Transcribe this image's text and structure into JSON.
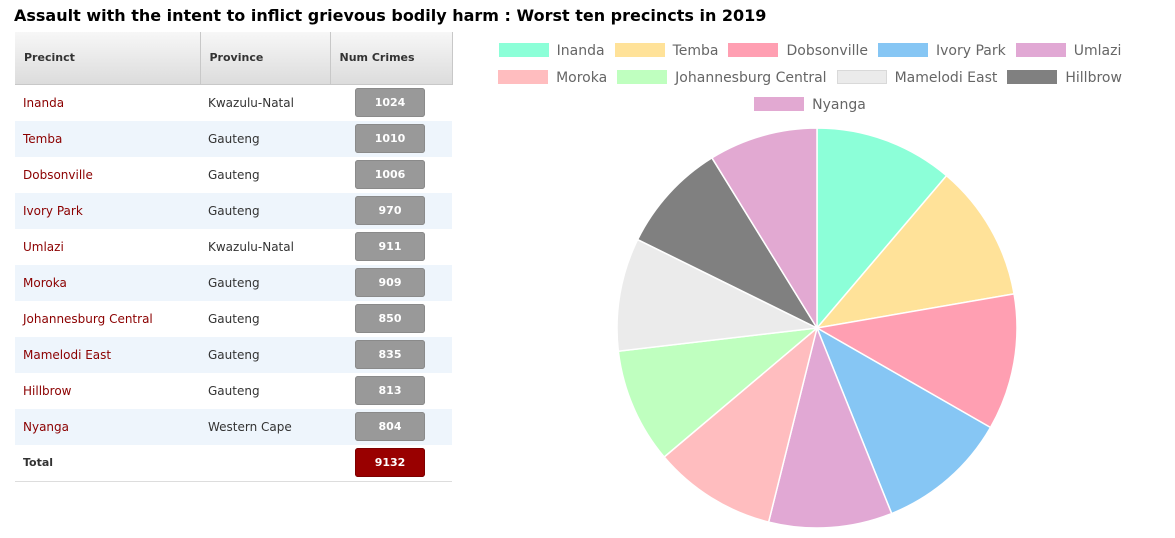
{
  "title": "Assault with the intent to inflict grievous bodily harm : Worst ten precincts in 2019",
  "table": {
    "headers": {
      "precinct": "Precinct",
      "province": "Province",
      "num_crimes": "Num Crimes"
    },
    "rows": [
      {
        "precinct": "Inanda",
        "province": "Kwazulu-Natal",
        "num": "1024"
      },
      {
        "precinct": "Temba",
        "province": "Gauteng",
        "num": "1010"
      },
      {
        "precinct": "Dobsonville",
        "province": "Gauteng",
        "num": "1006"
      },
      {
        "precinct": "Ivory Park",
        "province": "Gauteng",
        "num": "970"
      },
      {
        "precinct": "Umlazi",
        "province": "Kwazulu-Natal",
        "num": "911"
      },
      {
        "precinct": "Moroka",
        "province": "Gauteng",
        "num": "909"
      },
      {
        "precinct": "Johannesburg Central",
        "province": "Gauteng",
        "num": "850"
      },
      {
        "precinct": "Mamelodi East",
        "province": "Gauteng",
        "num": "835"
      },
      {
        "precinct": "Hillbrow",
        "province": "Gauteng",
        "num": "813"
      },
      {
        "precinct": "Nyanga",
        "province": "Western Cape",
        "num": "804"
      }
    ],
    "total_label": "Total",
    "total_value": "9132"
  },
  "chart_data": {
    "type": "pie",
    "title": "",
    "legend_position": "top",
    "categories": [
      "Inanda",
      "Temba",
      "Dobsonville",
      "Ivory Park",
      "Umlazi",
      "Moroka",
      "Johannesburg Central",
      "Mamelodi East",
      "Hillbrow",
      "Nyanga"
    ],
    "values": [
      1024,
      1010,
      1006,
      970,
      911,
      909,
      850,
      835,
      813,
      804
    ],
    "colors": [
      "#8cffd8",
      "#ffe299",
      "#ff9fb2",
      "#86c6f4",
      "#e1a8d4",
      "#ffbdbf",
      "#bfffbf",
      "#ebebeb",
      "#808080",
      "#e2a9d2"
    ],
    "border_colors": [
      "#8cffd8",
      "#ffe299",
      "#ff9fb2",
      "#86c6f4",
      "#e1a8d4",
      "#ffbdbf",
      "#bfffbf",
      "#d9d9d9",
      "#808080",
      "#e2a9d2"
    ]
  }
}
